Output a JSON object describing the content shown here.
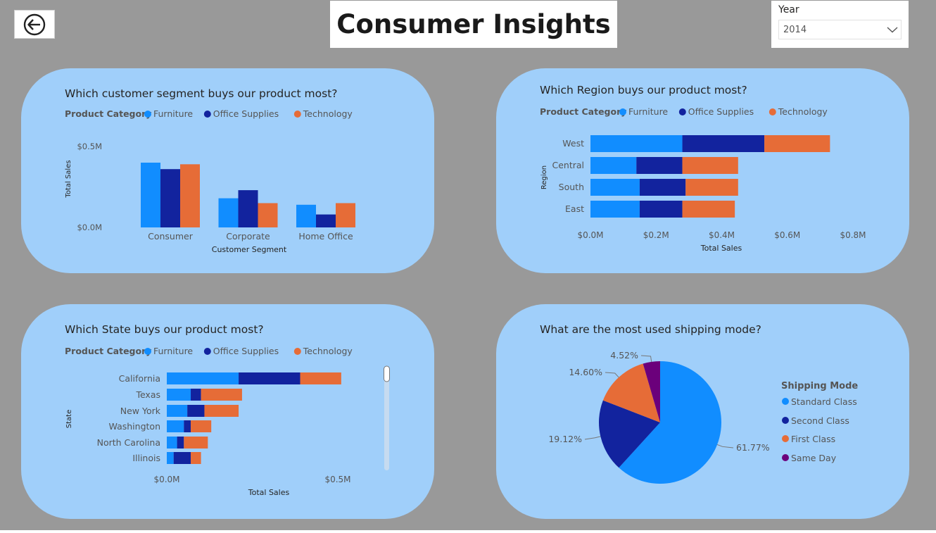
{
  "header": {
    "title": "Consumer Insights",
    "back_icon": "back-arrow-circle-icon"
  },
  "year_slicer": {
    "label": "Year",
    "selected": "2014",
    "icon": "chevron-down-icon"
  },
  "colors": {
    "furniture": "#118dff",
    "office_supplies": "#12239e",
    "technology": "#e66c37",
    "same_day": "#6b007b",
    "card_bg": "#a0cffa",
    "page_bg": "#999999"
  },
  "legend": {
    "title": "Product Category",
    "items": [
      "Furniture",
      "Office Supplies",
      "Technology"
    ]
  },
  "charts": {
    "segment": {
      "question": "Which customer segment buys our product most?",
      "xlabel": "Customer Segment",
      "ylabel": "Total Sales",
      "ticks": [
        "$0.0M",
        "$0.5M"
      ]
    },
    "region": {
      "question": "Which Region buys our product most?",
      "xlabel": "Total Sales",
      "ylabel": "Region",
      "ticks": [
        "$0.0M",
        "$0.2M",
        "$0.4M",
        "$0.6M",
        "$0.8M"
      ]
    },
    "state": {
      "question": "Which State buys our product most?",
      "xlabel": "Total Sales",
      "ylabel": "State",
      "ticks": [
        "$0.0M",
        "$0.5M"
      ]
    },
    "shipping": {
      "question": "What are the most used shipping mode?",
      "legend_title": "Shipping Mode"
    }
  },
  "chart_data": [
    {
      "type": "bar",
      "orientation": "vertical",
      "grouping": "clustered",
      "categories": [
        "Consumer",
        "Corporate",
        "Home Office"
      ],
      "series": [
        {
          "name": "Furniture",
          "values": [
            0.4,
            0.18,
            0.14
          ]
        },
        {
          "name": "Office Supplies",
          "values": [
            0.36,
            0.23,
            0.08
          ]
        },
        {
          "name": "Technology",
          "values": [
            0.39,
            0.15,
            0.15
          ]
        }
      ],
      "xlabel": "Customer Segment",
      "ylabel": "Total Sales",
      "unit": "$M",
      "ylim": [
        0,
        0.5
      ],
      "yticks": [
        0,
        0.5
      ],
      "grid": false,
      "legend_position": "top-left"
    },
    {
      "type": "bar",
      "orientation": "horizontal",
      "grouping": "stacked",
      "categories": [
        "West",
        "Central",
        "South",
        "East"
      ],
      "series": [
        {
          "name": "Furniture",
          "values": [
            0.28,
            0.14,
            0.15,
            0.15
          ]
        },
        {
          "name": "Office Supplies",
          "values": [
            0.25,
            0.14,
            0.14,
            0.13
          ]
        },
        {
          "name": "Technology",
          "values": [
            0.2,
            0.17,
            0.16,
            0.16
          ]
        }
      ],
      "xlabel": "Total Sales",
      "ylabel": "Region",
      "unit": "$M",
      "xlim": [
        0,
        0.8
      ],
      "xticks": [
        0,
        0.2,
        0.4,
        0.6,
        0.8
      ],
      "grid": false,
      "legend_position": "top-left"
    },
    {
      "type": "bar",
      "orientation": "horizontal",
      "grouping": "stacked",
      "categories": [
        "California",
        "Texas",
        "New York",
        "Washington",
        "North Carolina",
        "Illinois"
      ],
      "series": [
        {
          "name": "Furniture",
          "values": [
            0.21,
            0.07,
            0.06,
            0.05,
            0.03,
            0.02
          ]
        },
        {
          "name": "Office Supplies",
          "values": [
            0.18,
            0.03,
            0.05,
            0.02,
            0.02,
            0.05
          ]
        },
        {
          "name": "Technology",
          "values": [
            0.12,
            0.12,
            0.1,
            0.06,
            0.07,
            0.03
          ]
        }
      ],
      "xlabel": "Total Sales",
      "ylabel": "State",
      "unit": "$M",
      "xlim": [
        0,
        0.5
      ],
      "xticks": [
        0,
        0.5
      ],
      "grid": false,
      "legend_position": "top-left"
    },
    {
      "type": "pie",
      "categories": [
        "Standard Class",
        "Second Class",
        "First Class",
        "Same Day"
      ],
      "values": [
        61.77,
        19.12,
        14.6,
        4.52
      ],
      "labels": [
        "61.77%",
        "19.12%",
        "14.60%",
        "4.52%"
      ],
      "legend_title": "Shipping Mode",
      "legend_position": "right"
    }
  ]
}
